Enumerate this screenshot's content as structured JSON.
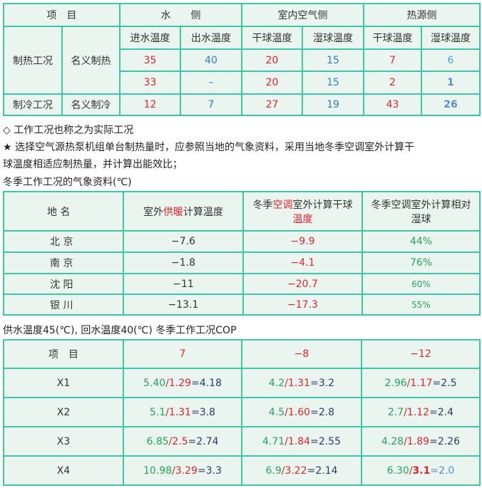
{
  "table1": {
    "header": {
      "item": "项　目",
      "water": "水　　侧",
      "indoor": "室内空气侧",
      "source": "热源侧"
    },
    "subheader": [
      "进水温度",
      "出水温度",
      "干球温度",
      "湿球温度",
      "干球温度",
      "湿球温度"
    ],
    "heating": {
      "label": "制热工况",
      "sub": "名义制热",
      "rows": [
        [
          "35",
          "40",
          "20",
          "15",
          "7",
          "6"
        ],
        [
          "33",
          "–",
          "20",
          "15",
          "2",
          "1"
        ]
      ]
    },
    "cooling": {
      "label": "制冷工况",
      "sub": "名义制冷",
      "row": [
        "12",
        "7",
        "27",
        "19",
        "43",
        "26"
      ]
    }
  },
  "notes": {
    "line1": "◇ 工作工况也称之为实际工况",
    "line2": "★ 选择空气源热泵机组单台制热量时，应参照当地的气象资料，采用当地冬季空调室外计算干",
    "line3": "球温度相适应制热量，并计算出能效比；",
    "line4": "冬季工作工况的气象资料(℃)"
  },
  "table2": {
    "headers": {
      "place": "地 名",
      "h2a": "室外",
      "h2b": "供暖",
      "h2c": "计算温度",
      "h3a": "冬季",
      "h3b": "空调",
      "h3c": "室外计算干球",
      "h3d": "温度",
      "h4": "冬季空调室外计算相对湿球"
    },
    "rows": [
      {
        "city": "北 京",
        "heat": "−7.6",
        "dry": "−9.9",
        "rh": "44%"
      },
      {
        "city": "南 京",
        "heat": "−1.8",
        "dry": "−4.1",
        "rh": "76%"
      },
      {
        "city": "沈 阳",
        "heat": "−11",
        "dry": "−20.7",
        "rh": "60%"
      },
      {
        "city": "银 川",
        "heat": "−13.1",
        "dry": "−17.3",
        "rh": "55%"
      }
    ]
  },
  "caption3": "供水温度45(℃), 回水温度40(℃) 冬季工作工况COP",
  "table3": {
    "headers": [
      "项　目",
      "7",
      "−8",
      "−12"
    ],
    "rows": [
      {
        "name": "X1",
        "cells": [
          [
            "5.40",
            "1.29",
            "4.18"
          ],
          [
            "4.2",
            "1.31",
            "3.2"
          ],
          [
            "2.96",
            "1.17",
            "2.5"
          ]
        ]
      },
      {
        "name": "X2",
        "cells": [
          [
            "5.1",
            "1.31",
            "3.8"
          ],
          [
            "4.5",
            "1.60",
            "2.8"
          ],
          [
            "2.7",
            "1.12",
            "2.4"
          ]
        ]
      },
      {
        "name": "X3",
        "cells": [
          [
            "6.85",
            "2.5",
            "2.74"
          ],
          [
            "4.71",
            "1.84",
            "2.55"
          ],
          [
            "4.28",
            "1.89",
            "2.26"
          ]
        ]
      },
      {
        "name": "X4",
        "cells": [
          [
            "10.98",
            "3.29",
            "3.3"
          ],
          [
            "6.9",
            "3.22",
            "2.14"
          ],
          [
            "6.30",
            "3.1",
            "2.0"
          ]
        ]
      }
    ]
  }
}
